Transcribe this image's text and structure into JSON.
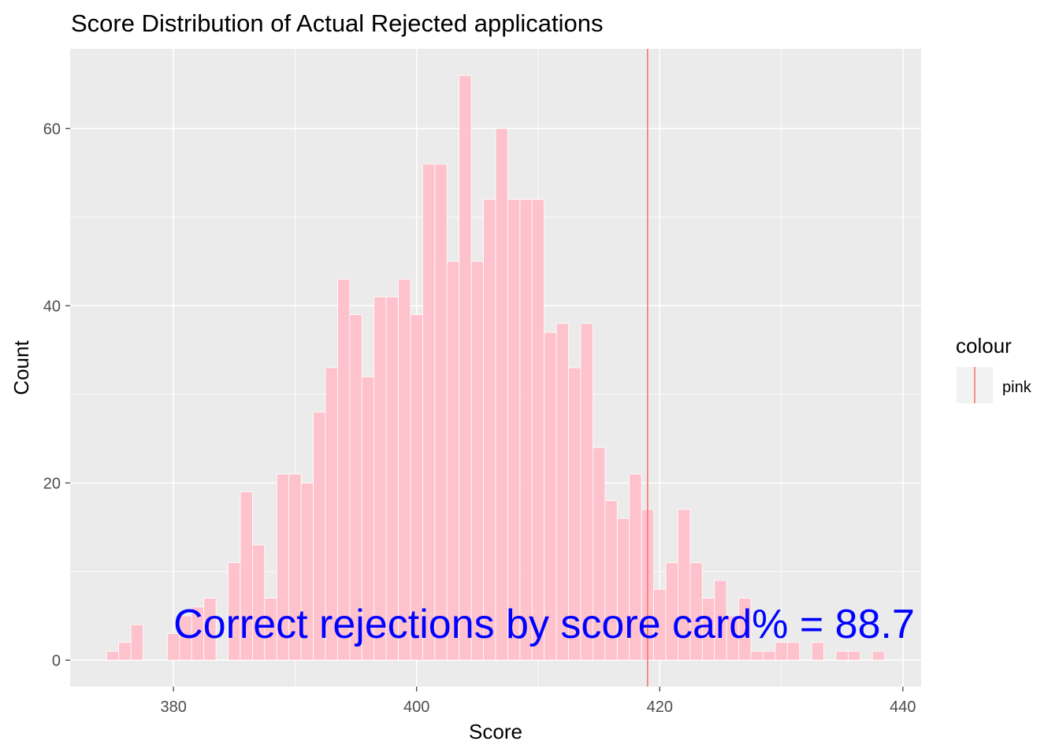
{
  "chart_data": {
    "type": "bar",
    "title": "Score Distribution of Actual Rejected applications",
    "xlabel": "Score",
    "ylabel": "Count",
    "xlim": [
      371.5,
      441.5
    ],
    "ylim": [
      -3,
      69
    ],
    "x_ticks": [
      380,
      400,
      420,
      440
    ],
    "x_tick_labels": [
      "380",
      "400",
      "420",
      "440"
    ],
    "y_ticks": [
      0,
      20,
      40,
      60
    ],
    "y_tick_labels": [
      "0",
      "20",
      "40",
      "60"
    ],
    "grid": true,
    "bin_width": 1,
    "bar_color": "#FFC0CB",
    "panel_background": "#EBEBEB",
    "x": [
      375,
      376,
      377,
      378,
      379,
      380,
      381,
      382,
      383,
      384,
      385,
      386,
      387,
      388,
      389,
      390,
      391,
      392,
      393,
      394,
      395,
      396,
      397,
      398,
      399,
      400,
      401,
      402,
      403,
      404,
      405,
      406,
      407,
      408,
      409,
      410,
      411,
      412,
      413,
      414,
      415,
      416,
      417,
      418,
      419,
      420,
      421,
      422,
      423,
      424,
      425,
      426,
      427,
      428,
      429,
      430,
      431,
      432,
      433,
      434,
      435,
      436,
      437,
      438
    ],
    "values": [
      1,
      2,
      4,
      0,
      0,
      3,
      5,
      6,
      7,
      0,
      11,
      19,
      13,
      7,
      21,
      21,
      20,
      28,
      33,
      43,
      39,
      32,
      41,
      41,
      43,
      39,
      56,
      56,
      45,
      66,
      45,
      52,
      60,
      52,
      52,
      52,
      37,
      38,
      33,
      38,
      24,
      18,
      16,
      21,
      17,
      8,
      11,
      17,
      11,
      7,
      9,
      5,
      7,
      1,
      1,
      2,
      2,
      0,
      2,
      0,
      1,
      1,
      0,
      1
    ],
    "reference_line": {
      "x": 419,
      "color": "#F8766D"
    },
    "legend": {
      "title": "colour",
      "position": "right",
      "entries": [
        {
          "label": "pink",
          "color": "#F8766D"
        }
      ]
    },
    "annotation": {
      "text": "Correct rejections by score card% = 88.7",
      "x": 380,
      "y": 2.5,
      "color": "#0000FF"
    }
  }
}
